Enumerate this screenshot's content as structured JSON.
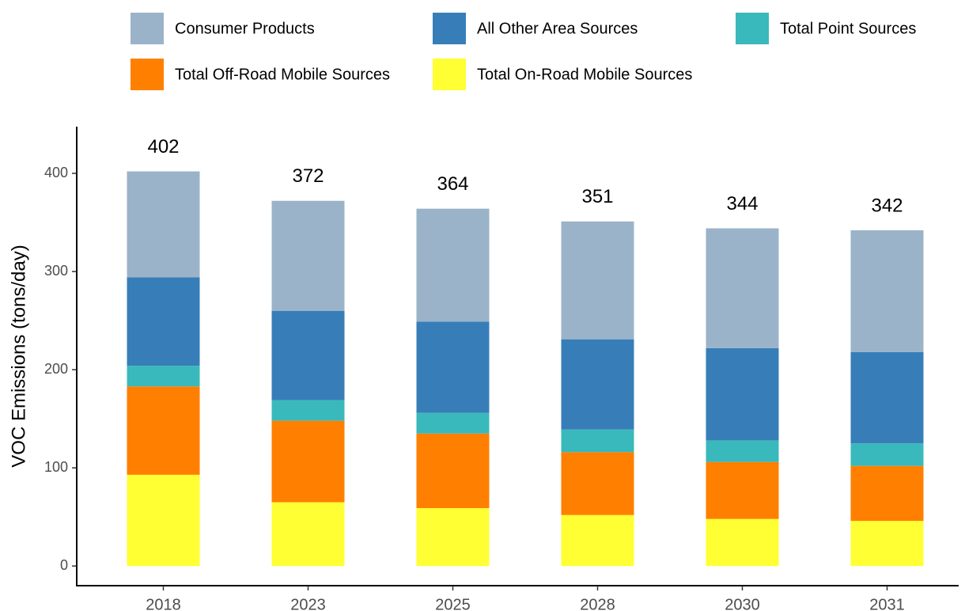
{
  "chart_data": {
    "type": "stacked_bar",
    "y_label": "VOC Emissions (tons/day)",
    "categories": [
      "2018",
      "2023",
      "2025",
      "2028",
      "2030",
      "2031"
    ],
    "series": [
      {
        "name": "Consumer Products",
        "color": "#9ab3c9",
        "values": [
          108,
          112,
          115,
          120,
          122,
          124
        ]
      },
      {
        "name": "All Other Area Sources",
        "color": "#377eb8",
        "values": [
          90,
          91,
          93,
          92,
          94,
          93
        ]
      },
      {
        "name": "Total Point Sources",
        "color": "#39b9bb",
        "values": [
          21,
          21,
          21,
          23,
          22,
          23
        ]
      },
      {
        "name": "Total Off-Road Mobile Sources",
        "color": "#ff7f00",
        "values": [
          90,
          83,
          76,
          64,
          58,
          56
        ]
      },
      {
        "name": "Total On-Road Mobile Sources",
        "color": "#ffff33",
        "values": [
          93,
          65,
          59,
          52,
          48,
          46
        ]
      }
    ],
    "totals": [
      402,
      372,
      364,
      351,
      344,
      342
    ],
    "ylim": [
      -20,
      450
    ],
    "yticks": [
      0,
      100,
      200,
      300,
      400
    ]
  }
}
